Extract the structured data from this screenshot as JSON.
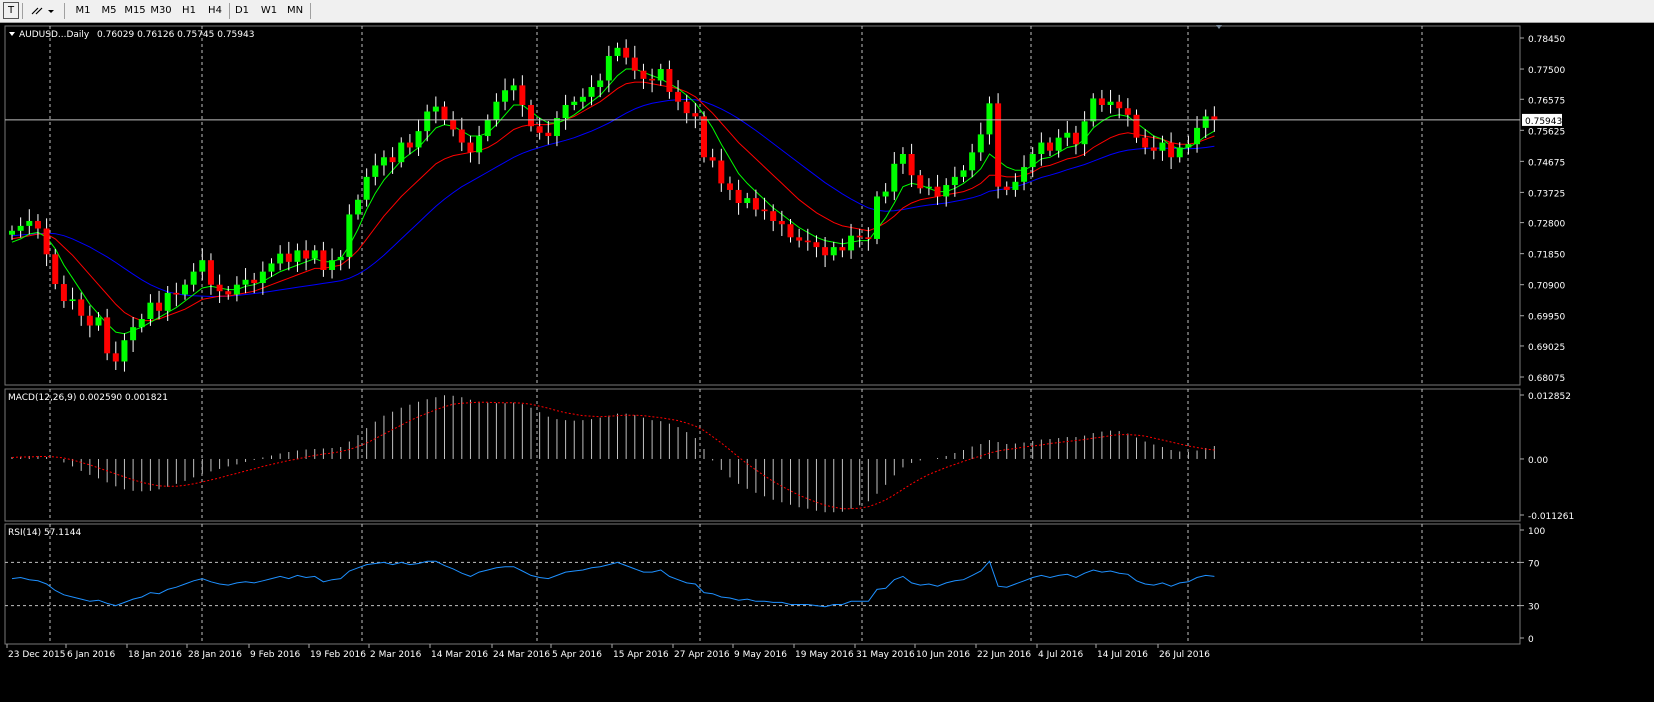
{
  "toolbar": {
    "tool_icons": [
      "text-tool-icon",
      "line-tools-icon"
    ],
    "timeframes": [
      "M1",
      "M5",
      "M15",
      "M30",
      "H1",
      "H4",
      "D1",
      "W1",
      "MN"
    ]
  },
  "main_panel": {
    "title": "AUDUSD...Daily",
    "ohlc_text": "0.76029 0.76126 0.75745 0.75943",
    "current_price_label": "0.75943",
    "y_ticks": [
      "0.78450",
      "0.77500",
      "0.76575",
      "0.75625",
      "0.74675",
      "0.73725",
      "0.72800",
      "0.71850",
      "0.70900",
      "0.69950",
      "0.69025",
      "0.68075"
    ]
  },
  "macd_panel": {
    "title": "MACD(12,26,9) 0.002590 0.001821",
    "y_ticks": [
      "0.012852",
      "0.00",
      "-0.011261"
    ]
  },
  "rsi_panel": {
    "title": "RSI(14) 57.1144",
    "y_ticks": [
      "100",
      "70",
      "30",
      "0"
    ]
  },
  "x_labels": [
    "23 Dec 2015",
    "6 Jan 2016",
    "18 Jan 2016",
    "28 Jan 2016",
    "9 Feb 2016",
    "19 Feb 2016",
    "2 Mar 2016",
    "14 Mar 2016",
    "24 Mar 2016",
    "5 Apr 2016",
    "15 Apr 2016",
    "27 Apr 2016",
    "9 May 2016",
    "19 May 2016",
    "31 May 2016",
    "10 Jun 2016",
    "22 Jun 2016",
    "4 Jul 2016",
    "14 Jul 2016",
    "26 Jul 2016"
  ],
  "colors": {
    "background": "#000000",
    "bull_candle": "#00ff00",
    "bear_candle": "#ff0000",
    "wick": "#ffffff",
    "ma_fast": "#00ff00",
    "ma_mid": "#ff0000",
    "ma_slow": "#0000ff",
    "macd_hist": "#c0c0c0",
    "macd_signal": "#ff0000",
    "rsi_line": "#1e90ff",
    "grid": "#ffffff",
    "axis_text": "#ffffff"
  },
  "chart_data": {
    "type": "candlestick",
    "symbol": "AUDUSD",
    "timeframe": "Daily",
    "series": [
      {
        "name": "price_close",
        "values": [
          0.7255,
          0.727,
          0.7285,
          0.7262,
          0.7183,
          0.7092,
          0.704,
          0.7045,
          0.6995,
          0.6965,
          0.699,
          0.688,
          0.6855,
          0.692,
          0.696,
          0.6985,
          0.7035,
          0.701,
          0.7065,
          0.706,
          0.709,
          0.713,
          0.7165,
          0.709,
          0.707,
          0.706,
          0.709,
          0.7105,
          0.7095,
          0.713,
          0.7155,
          0.7185,
          0.716,
          0.7195,
          0.717,
          0.7195,
          0.7135,
          0.7165,
          0.7175,
          0.7305,
          0.735,
          0.742,
          0.7455,
          0.748,
          0.7465,
          0.7525,
          0.751,
          0.756,
          0.762,
          0.7635,
          0.7595,
          0.7565,
          0.7525,
          0.7495,
          0.7545,
          0.7595,
          0.765,
          0.7685,
          0.77,
          0.764,
          0.7575,
          0.7555,
          0.7545,
          0.76,
          0.764,
          0.765,
          0.7665,
          0.7695,
          0.7715,
          0.779,
          0.7815,
          0.7785,
          0.7745,
          0.772,
          0.7715,
          0.775,
          0.768,
          0.765,
          0.7615,
          0.7605,
          0.748,
          0.747,
          0.74,
          0.738,
          0.734,
          0.7355,
          0.732,
          0.7315,
          0.7285,
          0.7275,
          0.7235,
          0.7225,
          0.722,
          0.7205,
          0.718,
          0.7205,
          0.7195,
          0.724,
          0.7235,
          0.723,
          0.736,
          0.7375,
          0.746,
          0.749,
          0.7425,
          0.7385,
          0.739,
          0.736,
          0.7395,
          0.742,
          0.744,
          0.7495,
          0.755,
          0.7645,
          0.739,
          0.738,
          0.7405,
          0.745,
          0.749,
          0.7525,
          0.75,
          0.754,
          0.7555,
          0.752,
          0.759,
          0.766,
          0.764,
          0.765,
          0.763,
          0.761,
          0.754,
          0.751,
          0.75,
          0.7525,
          0.748,
          0.751,
          0.752,
          0.757,
          0.7605,
          0.7594
        ]
      },
      {
        "name": "ma_fast",
        "values": [
          0.722,
          0.723,
          0.7245,
          0.725,
          0.7235,
          0.72,
          0.715,
          0.711,
          0.707,
          0.703,
          0.7,
          0.697,
          0.6945,
          0.694,
          0.695,
          0.696,
          0.6975,
          0.699,
          0.7005,
          0.702,
          0.704,
          0.706,
          0.708,
          0.7085,
          0.708,
          0.7075,
          0.7075,
          0.7085,
          0.709,
          0.71,
          0.7115,
          0.713,
          0.714,
          0.715,
          0.716,
          0.717,
          0.716,
          0.716,
          0.717,
          0.721,
          0.726,
          0.732,
          0.737,
          0.741,
          0.744,
          0.747,
          0.749,
          0.751,
          0.754,
          0.757,
          0.758,
          0.7575,
          0.756,
          0.7545,
          0.7545,
          0.7555,
          0.758,
          0.761,
          0.764,
          0.764,
          0.762,
          0.76,
          0.7585,
          0.7585,
          0.7595,
          0.761,
          0.763,
          0.765,
          0.767,
          0.77,
          0.773,
          0.775,
          0.775,
          0.774,
          0.773,
          0.772,
          0.7705,
          0.769,
          0.767,
          0.7645,
          0.761,
          0.757,
          0.752,
          0.7475,
          0.743,
          0.74,
          0.7375,
          0.735,
          0.7325,
          0.7305,
          0.7285,
          0.7265,
          0.725,
          0.7235,
          0.7225,
          0.722,
          0.7215,
          0.722,
          0.7225,
          0.7225,
          0.726,
          0.7295,
          0.734,
          0.739,
          0.74,
          0.7395,
          0.7385,
          0.7375,
          0.7375,
          0.7385,
          0.74,
          0.742,
          0.7445,
          0.749,
          0.747,
          0.745,
          0.744,
          0.744,
          0.7455,
          0.7475,
          0.748,
          0.7495,
          0.751,
          0.7515,
          0.7535,
          0.757,
          0.759,
          0.7605,
          0.761,
          0.7605,
          0.7585,
          0.7565,
          0.7545,
          0.7535,
          0.7515,
          0.7505,
          0.751,
          0.7525,
          0.7545,
          0.756
        ]
      },
      {
        "name": "ma_mid",
        "values": [
          0.723,
          0.7235,
          0.724,
          0.7245,
          0.7245,
          0.723,
          0.7205,
          0.718,
          0.715,
          0.712,
          0.709,
          0.706,
          0.703,
          0.7005,
          0.699,
          0.698,
          0.698,
          0.6985,
          0.6995,
          0.7005,
          0.7015,
          0.703,
          0.7045,
          0.705,
          0.7055,
          0.7055,
          0.706,
          0.7065,
          0.707,
          0.708,
          0.709,
          0.71,
          0.711,
          0.712,
          0.713,
          0.714,
          0.714,
          0.7145,
          0.715,
          0.717,
          0.7195,
          0.723,
          0.7265,
          0.73,
          0.733,
          0.736,
          0.7385,
          0.741,
          0.7435,
          0.746,
          0.7475,
          0.7485,
          0.749,
          0.7495,
          0.75,
          0.751,
          0.7525,
          0.7545,
          0.7565,
          0.7575,
          0.758,
          0.758,
          0.758,
          0.7585,
          0.7595,
          0.7605,
          0.762,
          0.7635,
          0.765,
          0.767,
          0.769,
          0.7705,
          0.771,
          0.771,
          0.7705,
          0.77,
          0.7695,
          0.769,
          0.768,
          0.7665,
          0.764,
          0.7615,
          0.7585,
          0.7555,
          0.7525,
          0.75,
          0.7475,
          0.745,
          0.7425,
          0.74,
          0.7375,
          0.735,
          0.733,
          0.731,
          0.7295,
          0.728,
          0.727,
          0.7265,
          0.726,
          0.7255,
          0.7265,
          0.728,
          0.73,
          0.7325,
          0.734,
          0.735,
          0.7355,
          0.736,
          0.7365,
          0.737,
          0.7375,
          0.7385,
          0.74,
          0.7425,
          0.7425,
          0.742,
          0.742,
          0.7425,
          0.7435,
          0.745,
          0.7455,
          0.7465,
          0.7475,
          0.748,
          0.749,
          0.751,
          0.7525,
          0.754,
          0.755,
          0.7555,
          0.755,
          0.7545,
          0.754,
          0.7535,
          0.7525,
          0.752,
          0.752,
          0.7525,
          0.7535,
          0.7545
        ]
      },
      {
        "name": "ma_slow",
        "values": [
          0.724,
          0.7242,
          0.7244,
          0.7246,
          0.7248,
          0.7246,
          0.724,
          0.723,
          0.7218,
          0.7205,
          0.719,
          0.7175,
          0.7158,
          0.714,
          0.7122,
          0.7105,
          0.709,
          0.7078,
          0.7068,
          0.7062,
          0.7058,
          0.7056,
          0.7055,
          0.7054,
          0.7054,
          0.7055,
          0.7057,
          0.706,
          0.7063,
          0.7066,
          0.707,
          0.7074,
          0.7078,
          0.7082,
          0.7086,
          0.709,
          0.7094,
          0.7098,
          0.7102,
          0.711,
          0.7122,
          0.7138,
          0.7158,
          0.718,
          0.7205,
          0.723,
          0.7255,
          0.728,
          0.7305,
          0.733,
          0.7352,
          0.7372,
          0.739,
          0.7405,
          0.742,
          0.7435,
          0.745,
          0.7465,
          0.748,
          0.7492,
          0.7502,
          0.751,
          0.7518,
          0.7525,
          0.7532,
          0.754,
          0.755,
          0.756,
          0.7572,
          0.7585,
          0.76,
          0.7615,
          0.7628,
          0.7638,
          0.7645,
          0.765,
          0.7654,
          0.7656,
          0.7657,
          0.7656,
          0.765,
          0.764,
          0.7628,
          0.7614,
          0.7598,
          0.758,
          0.7562,
          0.7542,
          0.7522,
          0.7502,
          0.7482,
          0.7462,
          0.7442,
          0.7422,
          0.7402,
          0.7385,
          0.7368,
          0.7352,
          0.7338,
          0.7325,
          0.7318,
          0.7315,
          0.7316,
          0.732,
          0.7325,
          0.733,
          0.7334,
          0.7337,
          0.734,
          0.7345,
          0.735,
          0.7356,
          0.7364,
          0.7376,
          0.738,
          0.7384,
          0.739,
          0.7398,
          0.7408,
          0.7418,
          0.7425,
          0.7433,
          0.7442,
          0.745,
          0.7458,
          0.7468,
          0.7478,
          0.7488,
          0.7496,
          0.7502,
          0.7505,
          0.7507,
          0.7508,
          0.7508,
          0.7507,
          0.7506,
          0.7506,
          0.7507,
          0.751,
          0.7514
        ]
      },
      {
        "name": "macd_hist",
        "values": [
          0.0004,
          0.0005,
          0.0006,
          0.0006,
          0.0004,
          0.0,
          -0.0007,
          -0.0015,
          -0.0024,
          -0.0032,
          -0.0039,
          -0.0047,
          -0.0055,
          -0.0061,
          -0.0064,
          -0.0065,
          -0.0064,
          -0.0061,
          -0.0056,
          -0.005,
          -0.0044,
          -0.0037,
          -0.003,
          -0.0025,
          -0.002,
          -0.0015,
          -0.0011,
          -0.0006,
          -0.0002,
          0.0003,
          0.0007,
          0.0011,
          0.0014,
          0.0017,
          0.0019,
          0.002,
          0.0021,
          0.0022,
          0.0024,
          0.0035,
          0.0048,
          0.0062,
          0.0075,
          0.0087,
          0.0095,
          0.0103,
          0.0109,
          0.0115,
          0.012,
          0.0124,
          0.0128,
          0.0127,
          0.0124,
          0.0119,
          0.0115,
          0.0113,
          0.0112,
          0.0112,
          0.0113,
          0.011,
          0.0103,
          0.0094,
          0.0085,
          0.008,
          0.0078,
          0.0077,
          0.0078,
          0.008,
          0.0083,
          0.0087,
          0.0091,
          0.0091,
          0.0088,
          0.0083,
          0.0078,
          0.0076,
          0.0071,
          0.0064,
          0.0054,
          0.0042,
          0.002,
          -0.0003,
          -0.0022,
          -0.0037,
          -0.005,
          -0.006,
          -0.0068,
          -0.0075,
          -0.0082,
          -0.0087,
          -0.0092,
          -0.0097,
          -0.01,
          -0.0104,
          -0.0107,
          -0.0107,
          -0.0106,
          -0.01,
          -0.0093,
          -0.0085,
          -0.007,
          -0.0052,
          -0.0033,
          -0.0017,
          -0.0008,
          -0.0003,
          0.0,
          0.0002,
          0.0006,
          0.0012,
          0.0018,
          0.0025,
          0.003,
          0.0038,
          0.0034,
          0.003,
          0.0031,
          0.0033,
          0.0036,
          0.0039,
          0.004,
          0.0042,
          0.0044,
          0.0044,
          0.0047,
          0.0052,
          0.0055,
          0.0057,
          0.0056,
          0.0051,
          0.0043,
          0.0035,
          0.0029,
          0.0024,
          0.0018,
          0.0015,
          0.0014,
          0.0017,
          0.0022,
          0.0026
        ]
      },
      {
        "name": "macd_signal",
        "values": [
          0.0003,
          0.0004,
          0.0004,
          0.0005,
          0.0005,
          0.0004,
          0.0002,
          -0.0002,
          -0.0007,
          -0.0012,
          -0.0018,
          -0.0024,
          -0.003,
          -0.0036,
          -0.0042,
          -0.0047,
          -0.0051,
          -0.0054,
          -0.0055,
          -0.0055,
          -0.0053,
          -0.005,
          -0.0046,
          -0.0042,
          -0.0038,
          -0.0033,
          -0.0029,
          -0.0024,
          -0.002,
          -0.0015,
          -0.0011,
          -0.0007,
          -0.0003,
          0.0,
          0.0004,
          0.0007,
          0.001,
          0.0012,
          0.0015,
          0.0019,
          0.0025,
          0.0032,
          0.0041,
          0.005,
          0.0059,
          0.0068,
          0.0077,
          0.0085,
          0.0092,
          0.0099,
          0.0105,
          0.011,
          0.0112,
          0.0113,
          0.0114,
          0.0114,
          0.0113,
          0.0113,
          0.0113,
          0.0112,
          0.011,
          0.0106,
          0.0102,
          0.0097,
          0.0093,
          0.009,
          0.0087,
          0.0086,
          0.0085,
          0.0086,
          0.0087,
          0.0088,
          0.0088,
          0.0087,
          0.0085,
          0.0083,
          0.008,
          0.0077,
          0.0072,
          0.0066,
          0.0057,
          0.0045,
          0.0032,
          0.0018,
          0.0004,
          -0.001,
          -0.0022,
          -0.0034,
          -0.0045,
          -0.0055,
          -0.0064,
          -0.0073,
          -0.008,
          -0.0087,
          -0.0093,
          -0.0097,
          -0.01,
          -0.01,
          -0.0099,
          -0.0096,
          -0.009,
          -0.0082,
          -0.0072,
          -0.0061,
          -0.005,
          -0.004,
          -0.0031,
          -0.0024,
          -0.0017,
          -0.0011,
          -0.0005,
          0.0001,
          0.0006,
          0.0012,
          0.0016,
          0.0019,
          0.0021,
          0.0024,
          0.0026,
          0.0028,
          0.0031,
          0.0033,
          0.0035,
          0.0037,
          0.0039,
          0.0042,
          0.0044,
          0.0047,
          0.0049,
          0.0049,
          0.0048,
          0.0046,
          0.0042,
          0.0038,
          0.0034,
          0.003,
          0.0026,
          0.0023,
          0.002,
          0.0018
        ]
      },
      {
        "name": "rsi",
        "values": [
          55,
          56,
          54,
          53,
          50,
          44,
          40,
          38,
          36,
          34,
          35,
          32,
          30,
          33,
          36,
          38,
          42,
          41,
          45,
          47,
          50,
          53,
          55,
          52,
          50,
          49,
          51,
          52,
          51,
          53,
          55,
          57,
          55,
          58,
          56,
          57,
          52,
          54,
          55,
          62,
          65,
          68,
          69,
          70,
          68,
          70,
          68,
          69,
          71,
          71,
          67,
          64,
          60,
          57,
          61,
          63,
          65,
          66,
          66,
          62,
          58,
          56,
          55,
          58,
          61,
          62,
          63,
          65,
          66,
          68,
          70,
          67,
          64,
          61,
          61,
          63,
          57,
          54,
          51,
          50,
          42,
          41,
          38,
          37,
          35,
          36,
          34,
          34,
          33,
          33,
          31,
          31,
          31,
          30,
          29,
          31,
          31,
          34,
          34,
          34,
          45,
          46,
          54,
          57,
          51,
          49,
          50,
          48,
          51,
          53,
          54,
          58,
          62,
          71,
          48,
          47,
          50,
          53,
          56,
          58,
          56,
          58,
          59,
          56,
          60,
          63,
          61,
          62,
          60,
          59,
          53,
          50,
          49,
          51,
          48,
          51,
          52,
          56,
          58,
          57
        ]
      }
    ],
    "ylim_price": [
      0.68075,
      0.7845
    ],
    "ylim_macd": [
      -0.011261,
      0.012852
    ],
    "ylim_rsi": [
      0,
      100
    ],
    "rsi_levels": [
      30,
      70
    ],
    "grid": true
  }
}
